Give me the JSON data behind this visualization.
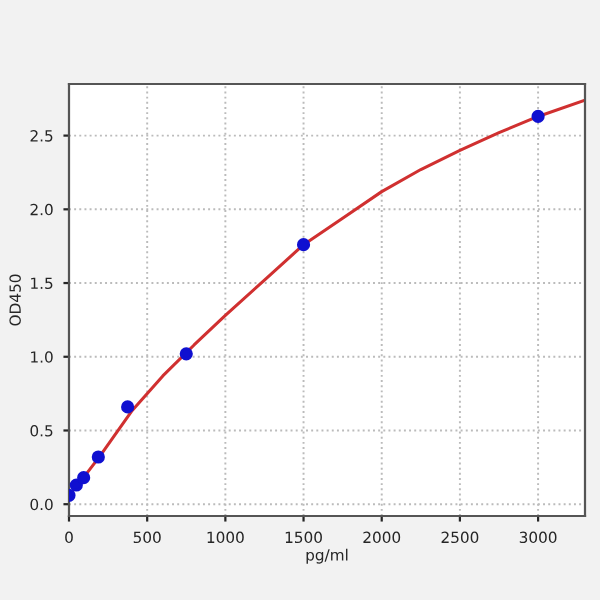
{
  "chart_data": {
    "type": "scatter",
    "xlabel": "pg/ml",
    "ylabel": "OD450",
    "series": [
      {
        "color": "#1010d0",
        "marker": "circle",
        "x": [
          0,
          46.9,
          93.75,
          187.5,
          375,
          750,
          1500,
          3000
        ],
        "values": [
          0.06,
          0.13,
          0.18,
          0.32,
          0.66,
          1.02,
          1.76,
          2.63
        ]
      },
      {
        "type": "line",
        "color": "#d03030",
        "x": [
          0,
          100,
          200,
          400,
          600,
          800,
          1000,
          1250,
          1500,
          1750,
          2000,
          2250,
          2500,
          2750,
          3000,
          3300
        ],
        "values": [
          0.06,
          0.19,
          0.33,
          0.63,
          0.87,
          1.08,
          1.28,
          1.52,
          1.76,
          1.94,
          2.12,
          2.27,
          2.4,
          2.52,
          2.63,
          2.74
        ]
      }
    ],
    "xlim": [
      0,
      3300
    ],
    "ylim": [
      -0.08,
      2.85
    ],
    "xticks": [
      0,
      500,
      1000,
      1500,
      2000,
      2500,
      3000
    ],
    "yticks": [
      {
        "value": 0,
        "label": "0.0"
      },
      0.5,
      {
        "value": 1,
        "label": "1.0"
      },
      1.5,
      {
        "value": 2,
        "label": "2.0"
      },
      2.5
    ],
    "grid": true
  }
}
